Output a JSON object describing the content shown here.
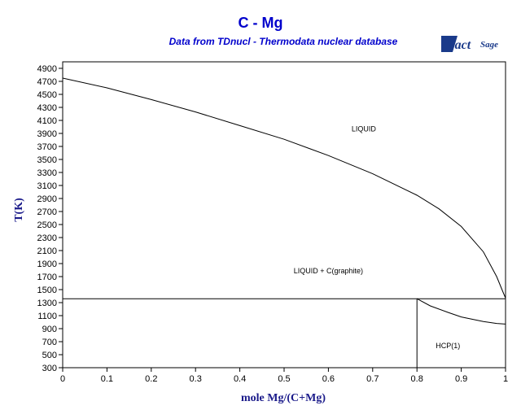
{
  "chart_data": {
    "type": "line",
    "title": "C - Mg",
    "subtitle": "Data from TDnucl - Thermodata nuclear database",
    "logo": "FactSage",
    "xlabel": "mole Mg/(C+Mg)",
    "ylabel": "T(K)",
    "xlim": [
      0,
      1
    ],
    "ylim": [
      300,
      5000
    ],
    "x_ticks": [
      0,
      0.1,
      0.2,
      0.3,
      0.4,
      0.5,
      0.6,
      0.7,
      0.8,
      0.9,
      1
    ],
    "x_tick_labels": [
      "0",
      "0.1",
      "0.2",
      "0.3",
      "0.4",
      "0.5",
      "0.6",
      "0.7",
      "0.8",
      "0.9",
      "1"
    ],
    "y_ticks": [
      300,
      500,
      700,
      900,
      1100,
      1300,
      1500,
      1700,
      1900,
      2100,
      2300,
      2500,
      2700,
      2900,
      3100,
      3300,
      3500,
      3700,
      3900,
      4100,
      4300,
      4500,
      4700,
      4900
    ],
    "series": [
      {
        "points": [
          [
            0,
            4750
          ],
          [
            0.1,
            4600
          ],
          [
            0.2,
            4420
          ],
          [
            0.3,
            4230
          ],
          [
            0.4,
            4020
          ],
          [
            0.5,
            3810
          ],
          [
            0.6,
            3560
          ],
          [
            0.7,
            3280
          ],
          [
            0.8,
            2950
          ],
          [
            0.85,
            2740
          ],
          [
            0.9,
            2470
          ],
          [
            0.95,
            2080
          ],
          [
            0.98,
            1700
          ],
          [
            0.995,
            1450
          ],
          [
            1.0,
            1370
          ]
        ]
      },
      {
        "points": [
          [
            0,
            1360
          ],
          [
            1,
            1360
          ]
        ]
      },
      {
        "points": [
          [
            0.8,
            300
          ],
          [
            0.8,
            1360
          ]
        ]
      },
      {
        "points": [
          [
            0.8,
            1360
          ],
          [
            0.83,
            1250
          ],
          [
            0.87,
            1150
          ],
          [
            0.9,
            1080
          ],
          [
            0.95,
            1010
          ],
          [
            0.98,
            980
          ],
          [
            1.0,
            970
          ]
        ]
      }
    ],
    "annotations": [
      {
        "text": "LIQUID",
        "x": 0.68,
        "y": 3930
      },
      {
        "text": "LIQUID + C(graphite)",
        "x": 0.6,
        "y": 1750
      },
      {
        "text": "HCP(1)",
        "x": 0.87,
        "y": 600
      }
    ]
  }
}
